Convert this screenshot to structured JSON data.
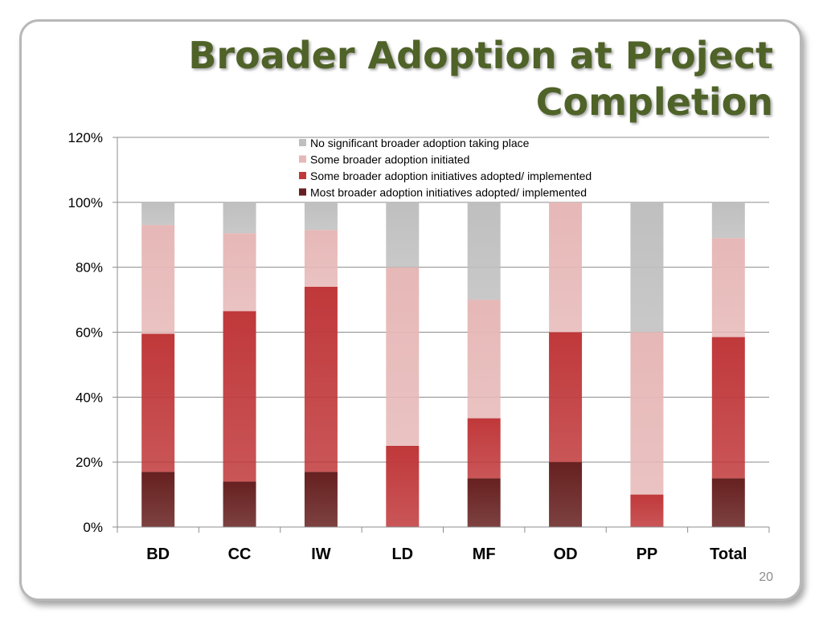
{
  "slide": {
    "title": "Broader Adoption at Project Completion",
    "page_number": "20"
  },
  "colors": {
    "title": "#4f6228",
    "grid": "#8c8c8c"
  },
  "chart_data": {
    "type": "bar",
    "stacked": true,
    "categories": [
      "BD",
      "CC",
      "IW",
      "LD",
      "MF",
      "OD",
      "PP",
      "Total"
    ],
    "ylim": [
      0,
      120
    ],
    "yticks": [
      "0%",
      "20%",
      "40%",
      "60%",
      "80%",
      "100%",
      "120%"
    ],
    "ytick_values": [
      0,
      20,
      40,
      60,
      80,
      100,
      120
    ],
    "grid": true,
    "legend_position": "top-center",
    "xlabel": "",
    "ylabel": "",
    "series": [
      {
        "name": "Most broader adoption initiatives adopted/ implemented",
        "color": "#66201f",
        "values": [
          17,
          14,
          17,
          0,
          15,
          20,
          0,
          15
        ]
      },
      {
        "name": "Some broader adoption initiatives adopted/ implemented",
        "color": "#c0383a",
        "values": [
          42.5,
          52.5,
          57,
          25,
          18.5,
          40,
          10,
          43.5
        ]
      },
      {
        "name": "Some broader adoption initiated",
        "color": "#e6b8b7",
        "values": [
          33.5,
          24,
          17.5,
          55,
          36.5,
          40,
          50,
          30.5
        ]
      },
      {
        "name": "No significant broader adoption taking place",
        "color": "#bfbfbf",
        "values": [
          7,
          9.5,
          8.5,
          20,
          30,
          0,
          40,
          11
        ]
      }
    ]
  }
}
